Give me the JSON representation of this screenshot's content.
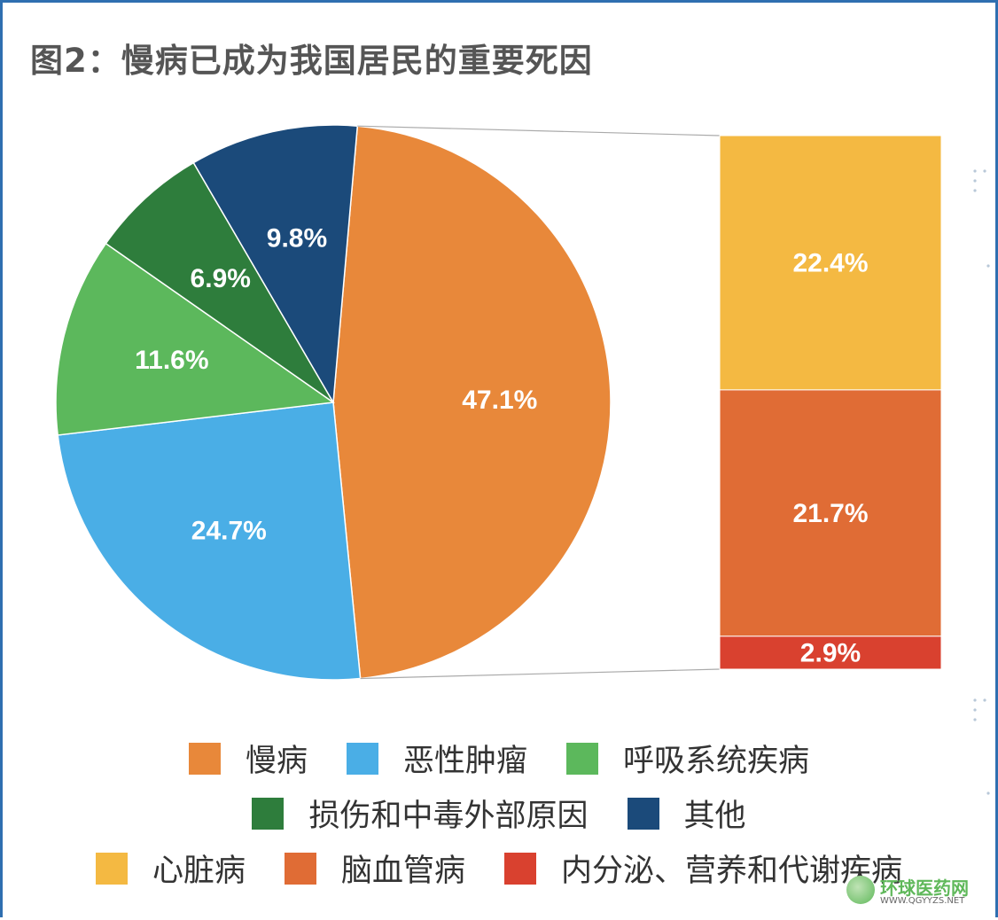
{
  "title": "图2：慢病已成为我国居民的重要死因",
  "chart_data": {
    "type": "pie",
    "subtype": "bar-of-pie",
    "title": "图2：慢病已成为我国居民的重要死因",
    "pie": [
      {
        "name": "慢病",
        "value": 47.1,
        "label": "47.1%",
        "color": "#e8883a"
      },
      {
        "name": "恶性肿瘤",
        "value": 24.7,
        "label": "24.7%",
        "color": "#4aaee6"
      },
      {
        "name": "呼吸系统疾病",
        "value": 11.6,
        "label": "11.6%",
        "color": "#5cb85c"
      },
      {
        "name": "损伤和中毒外部原因",
        "value": 6.9,
        "label": "6.9%",
        "color": "#2e7d3c"
      },
      {
        "name": "其他",
        "value": 9.8,
        "label": "9.8%",
        "color": "#1b4a7a"
      }
    ],
    "bar": [
      {
        "name": "心脏病",
        "value": 22.4,
        "label": "22.4%",
        "color": "#f4b942"
      },
      {
        "name": "脑血管病",
        "value": 21.7,
        "label": "21.7%",
        "color": "#e06c35"
      },
      {
        "name": "内分泌、营养和代谢疾病",
        "value": 2.9,
        "label": "2.9%",
        "color": "#d9412f"
      }
    ],
    "legend_placement": "bottom"
  },
  "watermark": {
    "name": "环球医药网",
    "url": "WWW.QGYYZS.NET"
  }
}
